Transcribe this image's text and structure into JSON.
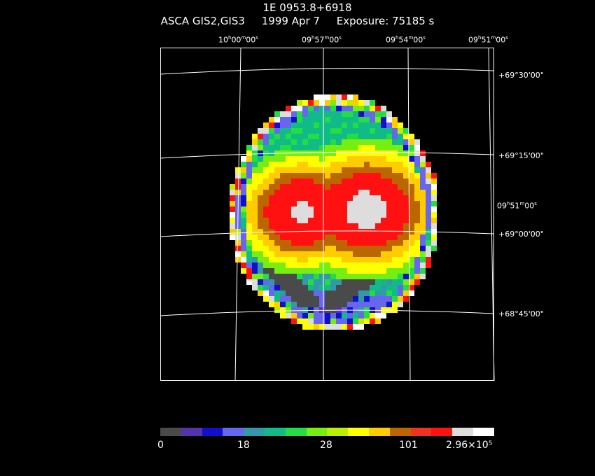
{
  "header": {
    "object": "1E 0953.8+6918",
    "instrument": "ASCA GIS2,GIS3",
    "date": "1999 Apr  7",
    "exposure": "Exposure: 75185 s"
  },
  "axes": {
    "ra_top": [
      "10h00m00s",
      "09h57m00s",
      "09h54m00s",
      "09h51m00s"
    ],
    "ra_side": "09h51m00s",
    "dec": [
      "+69°30'00\"",
      "+69°15'00\"",
      "+69°00'00\"",
      "+68°45'00\""
    ]
  },
  "colorbar": {
    "colors": [
      "#4a4a4a",
      "#5533aa",
      "#1010cc",
      "#6666ee",
      "#3399aa",
      "#11bb88",
      "#22dd44",
      "#77ee11",
      "#bbee00",
      "#ffff00",
      "#ffcc00",
      "#bb6600",
      "#ee3322",
      "#ff1111",
      "#dddddd",
      "#ffffff"
    ],
    "labels": [
      "0",
      "18",
      "28",
      "101",
      "2.96×10⁵"
    ]
  }
}
